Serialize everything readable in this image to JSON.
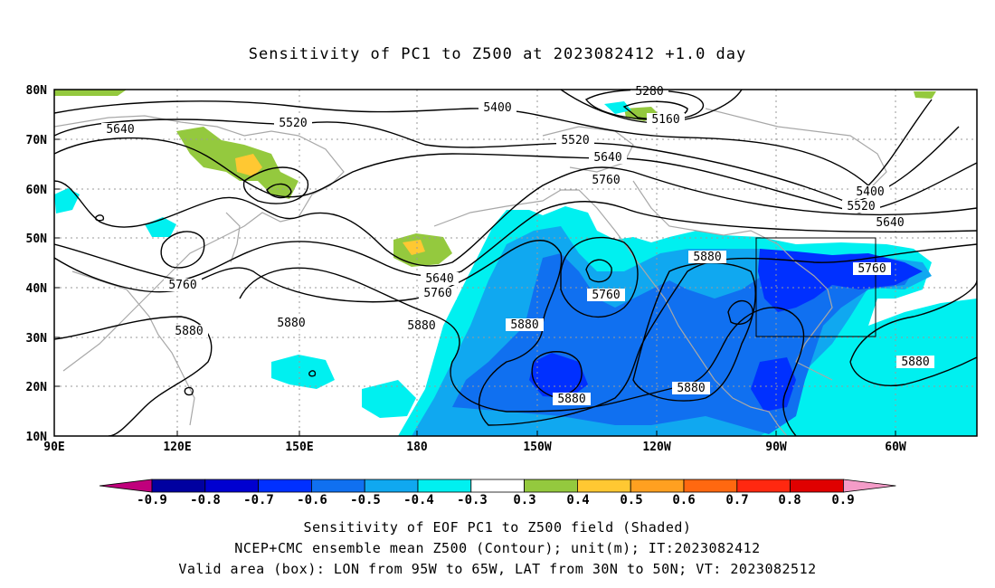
{
  "title": "Sensitivity of PC1 to Z500 at 2023082412 +1.0 day",
  "map": {
    "lat_labels": [
      "80N",
      "70N",
      "60N",
      "50N",
      "40N",
      "30N",
      "20N",
      "10N"
    ],
    "lon_labels": [
      "90E",
      "120E",
      "150E",
      "180",
      "150W",
      "120W",
      "90W",
      "60W"
    ],
    "contours": [
      {
        "label": "5280"
      },
      {
        "label": "5160"
      },
      {
        "label": "5400"
      },
      {
        "label": "5520"
      },
      {
        "label": "5640"
      },
      {
        "label": "5520"
      },
      {
        "label": "5640"
      },
      {
        "label": "5760"
      },
      {
        "label": "5400"
      },
      {
        "label": "5520"
      },
      {
        "label": "5640"
      },
      {
        "label": "5640"
      },
      {
        "label": "5760"
      },
      {
        "label": "5760"
      },
      {
        "label": "5760"
      },
      {
        "label": "5760"
      },
      {
        "label": "5880"
      },
      {
        "label": "5880"
      },
      {
        "label": "5880"
      },
      {
        "label": "5880"
      },
      {
        "label": "5880"
      },
      {
        "label": "5880"
      },
      {
        "label": "5880"
      },
      {
        "label": "5880"
      }
    ],
    "valid_box": {
      "lon": "95W to 65W",
      "lat": "30N to 50N"
    }
  },
  "colorbar": {
    "labels": [
      "-0.9",
      "-0.8",
      "-0.7",
      "-0.6",
      "-0.5",
      "-0.4",
      "-0.3",
      "0.3",
      "0.4",
      "0.5",
      "0.6",
      "0.7",
      "0.8",
      "0.9"
    ],
    "colors": [
      "#0000a0",
      "#0000d0",
      "#0030ff",
      "#1070f0",
      "#10a8f0",
      "#00f0f0",
      "#ffffff",
      "#94c93e",
      "#ffc832",
      "#ffa020",
      "#ff6810",
      "#ff2810",
      "#e00000"
    ],
    "low_arrow": "#c0007c",
    "high_arrow": "#f49cc8"
  },
  "footer": {
    "line1": "Sensitivity of EOF PC1 to Z500 field (Shaded)",
    "line2": "NCEP+CMC ensemble mean Z500 (Contour); unit(m); IT:2023082412",
    "line3": "Valid area (box): LON from 95W to 65W, LAT from 30N to 50N; VT: 2023082512"
  }
}
